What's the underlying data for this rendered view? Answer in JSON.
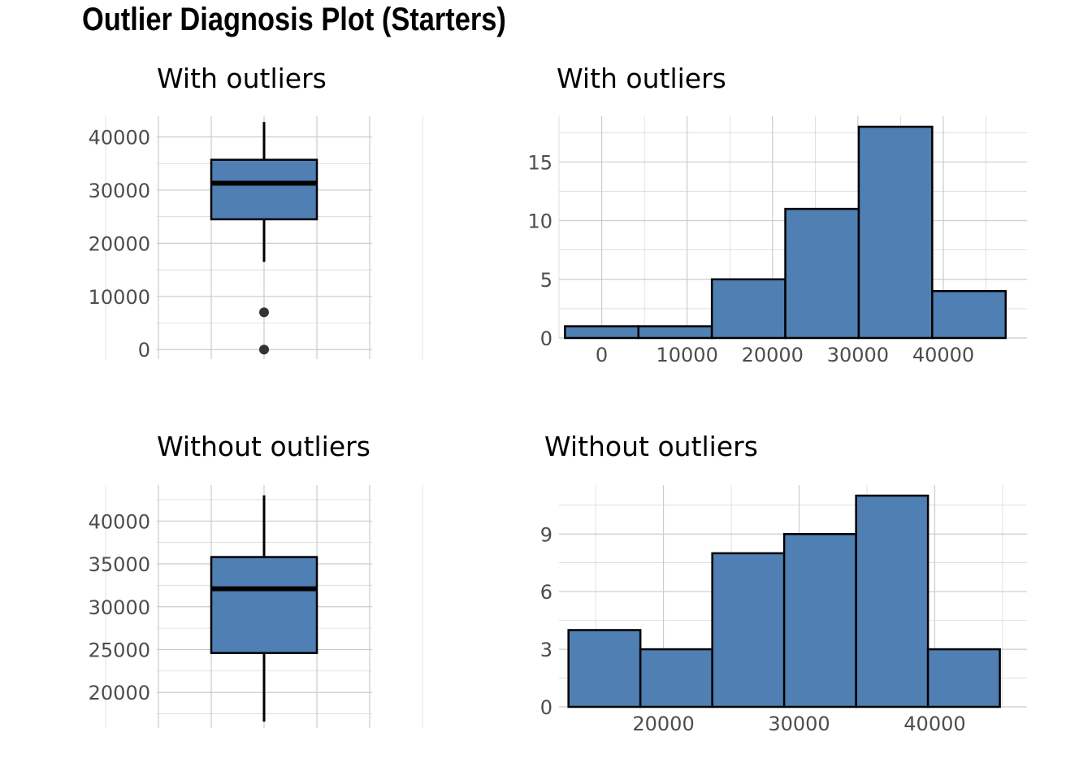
{
  "title": "Outlier Diagnosis Plot (Starters)",
  "colors": {
    "fill": "#4f7fb3",
    "outline": "#000000",
    "grid": "#cccccc",
    "tick_text": "#4d4d4d"
  },
  "chart_data": [
    {
      "type": "box",
      "title": "With outliers",
      "ylim": [
        -1800,
        43900
      ],
      "yticks": [
        0,
        10000,
        20000,
        30000,
        40000
      ],
      "whisker_low": 16500,
      "q1": 24500,
      "median": 31300,
      "q3": 35700,
      "whisker_high": 42800,
      "outliers": [
        7000,
        0
      ],
      "grid": true
    },
    {
      "type": "bar",
      "title": "With outliers",
      "xlim": [
        -5000,
        49800
      ],
      "xticks": [
        0,
        10000,
        20000,
        30000,
        40000
      ],
      "ylim": [
        0,
        18.9
      ],
      "yticks": [
        0,
        5,
        10,
        15
      ],
      "bin_edges": [
        -4300,
        4300,
        12900,
        21500,
        30100,
        38700,
        47300
      ],
      "values": [
        1,
        1,
        5,
        11,
        18,
        4
      ],
      "grid": true
    },
    {
      "type": "box",
      "title": "Without outliers",
      "ylim": [
        15850,
        44200
      ],
      "yticks": [
        20000,
        25000,
        30000,
        35000,
        40000
      ],
      "whisker_low": 16600,
      "q1": 24600,
      "median": 32100,
      "q3": 35800,
      "whisker_high": 43000,
      "outliers": [],
      "grid": true
    },
    {
      "type": "bar",
      "title": "Without outliers",
      "xlim": [
        12300,
        46800
      ],
      "xticks": [
        20000,
        30000,
        40000
      ],
      "ylim": [
        0,
        11.55
      ],
      "yticks": [
        0,
        3,
        6,
        9
      ],
      "bin_edges": [
        13000,
        18300,
        23600,
        28900,
        34200,
        39500,
        44800
      ],
      "values": [
        4,
        3,
        8,
        9,
        11,
        3
      ],
      "grid": true
    }
  ]
}
